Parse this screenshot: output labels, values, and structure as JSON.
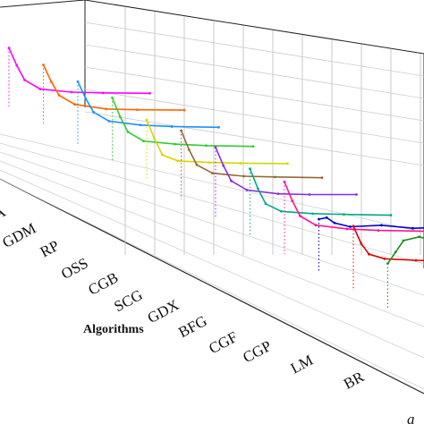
{
  "chart_data": {
    "type": "line",
    "projection": "3d-waterfall",
    "title": "",
    "xlabel": "Algorithms",
    "ylabel": "",
    "grid": true,
    "legend": "none",
    "categories": [
      "A",
      "GDM",
      "RP",
      "OSS",
      "CGB",
      "SCG",
      "GDX",
      "BFG",
      "CGF",
      "CGP",
      "LM",
      "BR"
    ],
    "clipped_axis_label": "a",
    "series": [
      {
        "color": "#ff00ff",
        "x": [
          0,
          5,
          10,
          20,
          40,
          60,
          90
        ],
        "y": [
          0.78,
          0.55,
          0.36,
          0.24,
          0.2,
          0.19,
          0.185
        ]
      },
      {
        "color": "#ff6600",
        "x": [
          0,
          5,
          10,
          20,
          40,
          60,
          90
        ],
        "y": [
          0.8,
          0.58,
          0.4,
          0.28,
          0.22,
          0.21,
          0.205
        ]
      },
      {
        "color": "#1e90ff",
        "x": [
          0,
          5,
          10,
          20,
          40,
          60,
          90
        ],
        "y": [
          0.82,
          0.6,
          0.42,
          0.3,
          0.25,
          0.23,
          0.22
        ]
      },
      {
        "color": "#33cc33",
        "x": [
          0,
          5,
          10,
          20,
          40,
          60,
          90
        ],
        "y": [
          0.85,
          0.6,
          0.4,
          0.28,
          0.24,
          0.22,
          0.21
        ]
      },
      {
        "color": "#d6d600",
        "x": [
          0,
          5,
          10,
          20,
          40,
          60,
          90
        ],
        "y": [
          0.8,
          0.55,
          0.34,
          0.26,
          0.24,
          0.23,
          0.225
        ]
      },
      {
        "color": "#996633",
        "x": [
          0,
          5,
          10,
          20,
          40,
          60,
          90
        ],
        "y": [
          0.9,
          0.65,
          0.45,
          0.34,
          0.3,
          0.29,
          0.28
        ]
      },
      {
        "color": "#8a2be2",
        "x": [
          0,
          5,
          10,
          20,
          40,
          60,
          90
        ],
        "y": [
          0.92,
          0.68,
          0.48,
          0.36,
          0.31,
          0.3,
          0.3
        ]
      },
      {
        "color": "#00aa88",
        "x": [
          0,
          5,
          10,
          20,
          40,
          60,
          90
        ],
        "y": [
          0.88,
          0.62,
          0.42,
          0.32,
          0.29,
          0.28,
          0.27
        ]
      },
      {
        "color": "#ff1493",
        "x": [
          0,
          5,
          10,
          20,
          40,
          60,
          90
        ],
        "y": [
          0.95,
          0.7,
          0.5,
          0.38,
          0.33,
          0.31,
          0.3
        ]
      },
      {
        "color": "#0000cd",
        "x": [
          0,
          5,
          10,
          20,
          40,
          60,
          90
        ],
        "y": [
          0.7,
          0.72,
          0.65,
          0.6,
          0.62,
          0.58,
          0.6
        ]
      },
      {
        "color": "#dd0000",
        "x": [
          0,
          5,
          10,
          20,
          40,
          60,
          90
        ],
        "y": [
          0.85,
          0.62,
          0.48,
          0.42,
          0.4,
          0.39,
          0.38
        ]
      },
      {
        "color": "#228b22",
        "x": [
          0,
          5,
          10,
          20,
          40,
          60,
          90
        ],
        "y": [
          0.6,
          0.75,
          0.9,
          0.95,
          0.85,
          0.55,
          0.3
        ]
      }
    ]
  }
}
